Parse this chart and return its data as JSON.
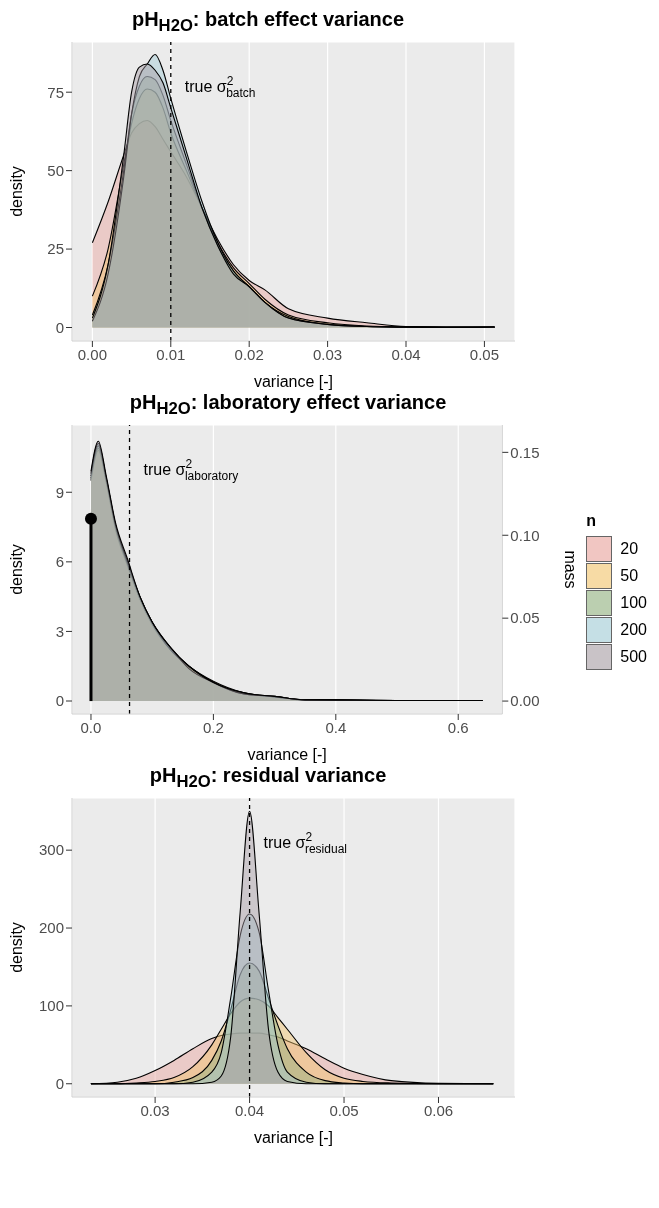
{
  "chart_data": [
    {
      "type": "area",
      "title": "pH$_{H2O}$: batch effect variance",
      "xlabel": "variance [-]",
      "ylabel": "density",
      "legend": false,
      "grid": true,
      "x": [
        0,
        0.002,
        0.004,
        0.005,
        0.006,
        0.007,
        0.008,
        0.009,
        0.01,
        0.012,
        0.014,
        0.016,
        0.018,
        0.02,
        0.022,
        0.025,
        0.03,
        0.035,
        0.04,
        0.045,
        0.0513
      ],
      "xlim": [
        -0.0026,
        0.0539
      ],
      "xticks": [
        {
          "value": 0,
          "label": "0.00"
        },
        0.01,
        0.02,
        0.03,
        0.04,
        0.05
      ],
      "ylim": [
        -4.3,
        91
      ],
      "yticks": [
        0,
        25,
        50,
        75
      ],
      "ref_lines": [
        {
          "axis": "x",
          "value": 0.01,
          "label": "true σ$^{2}$$_{batch}$",
          "line_style": "dashed",
          "color": "#000000"
        }
      ],
      "series": [
        {
          "color": "#e8a19b",
          "values": [
            27,
            40,
            55,
            62,
            65,
            66,
            64,
            60,
            56,
            48,
            38,
            28,
            20,
            15,
            12,
            6,
            3,
            1.5,
            0.3,
            0.2,
            0.2
          ]
        },
        {
          "color": "#f3c46b",
          "values": [
            10,
            25,
            52,
            65,
            73,
            76,
            75,
            70,
            62,
            50,
            38,
            27,
            19,
            14,
            9,
            4,
            1.5,
            0.5,
            0.2,
            0.1,
            0.1
          ]
        },
        {
          "color": "#8fb07d",
          "values": [
            4,
            20,
            50,
            68,
            77,
            80,
            79,
            74,
            66,
            52,
            38,
            26,
            18,
            13,
            8,
            3.5,
            1,
            0.3,
            0.1,
            0.1,
            0.1
          ]
        },
        {
          "color": "#9fcad4",
          "values": [
            2,
            17,
            48,
            68,
            80,
            84,
            87,
            82,
            73,
            56,
            40,
            27,
            18,
            13,
            8,
            3,
            1,
            0.3,
            0.1,
            0,
            0
          ]
        },
        {
          "color": "#a69ca3",
          "values": [
            3,
            20,
            55,
            75,
            83,
            84,
            82,
            78,
            70,
            54,
            38,
            26,
            17,
            13,
            8,
            3,
            1,
            0.3,
            0.1,
            0,
            0.2
          ]
        }
      ]
    },
    {
      "type": "area",
      "title": "pH$_{H2O}$: laboratory effect variance",
      "xlabel": "variance [-]",
      "ylabel": "density",
      "y2label": "mass",
      "legend": "right",
      "legend_title": "n",
      "grid": true,
      "x": [
        0,
        0.012,
        0.025,
        0.04,
        0.06,
        0.08,
        0.1,
        0.13,
        0.16,
        0.2,
        0.25,
        0.3,
        0.35,
        0.4,
        0.5,
        0.64
      ],
      "xlim": [
        -0.031,
        0.672
      ],
      "xticks": [
        {
          "value": 0,
          "label": "0.0"
        },
        0.2,
        0.4,
        0.6
      ],
      "ylim": [
        -0.56,
        11.9
      ],
      "yticks": [
        0,
        3,
        6,
        9
      ],
      "y2lim": [
        -0.0078,
        0.1665
      ],
      "y2ticks": [
        {
          "value": 0,
          "label": "0.00"
        },
        0.05,
        {
          "value": 0.1,
          "label": "0.10"
        },
        0.15
      ],
      "ref_lines": [
        {
          "axis": "x",
          "value": 0.063,
          "label": "true σ$^{2}$$_{laboratory}$",
          "line_style": "dashed",
          "color": "#000000"
        }
      ],
      "series": [
        {
          "name": "20",
          "color": "#e8a19b",
          "values": [
            9.5,
            10.8,
            9.4,
            7.4,
            5.8,
            4.4,
            3.4,
            2.3,
            1.5,
            0.8,
            0.35,
            0.2,
            0.05,
            0.05,
            0.02,
            0.02
          ]
        },
        {
          "name": "50",
          "color": "#f3c46b",
          "values": [
            9.6,
            10.9,
            9.5,
            7.5,
            5.9,
            4.4,
            3.3,
            2.2,
            1.5,
            0.85,
            0.35,
            0.18,
            0.05,
            0.04,
            0.02,
            0.02
          ]
        },
        {
          "name": "100",
          "color": "#8fb07d",
          "values": [
            9.7,
            11,
            9.6,
            7.6,
            5.9,
            4.5,
            3.4,
            2.2,
            1.5,
            0.8,
            0.3,
            0.18,
            0.04,
            0.04,
            0.02,
            0.02
          ]
        },
        {
          "name": "200",
          "color": "#9fcad4",
          "values": [
            9.8,
            11.1,
            9.6,
            7.6,
            6,
            4.5,
            3.4,
            2.3,
            1.4,
            0.8,
            0.3,
            0.2,
            0.04,
            0.04,
            0.02,
            0.02
          ]
        },
        {
          "name": "500",
          "color": "#a69ca3",
          "values": [
            9.9,
            11.2,
            9.7,
            7.7,
            6.1,
            4.5,
            3.4,
            2.3,
            1.5,
            0.8,
            0.35,
            0.2,
            0.05,
            0.04,
            0.02,
            0.02
          ]
        },
        {
          "type": "lollipop",
          "axis": "y2",
          "x": [
            0
          ],
          "values": [
            0.11
          ],
          "color": "#000000"
        }
      ]
    },
    {
      "type": "area",
      "title": "pH$_{H2O}$: residual variance",
      "xlabel": "variance [-]",
      "ylabel": "density",
      "legend": false,
      "grid": true,
      "x": [
        0.0232,
        0.026,
        0.028,
        0.03,
        0.032,
        0.034,
        0.036,
        0.037,
        0.038,
        0.039,
        0.04,
        0.041,
        0.042,
        0.043,
        0.044,
        0.046,
        0.048,
        0.05,
        0.052,
        0.055,
        0.06,
        0.0658
      ],
      "xlim": [
        0.0212,
        0.0681
      ],
      "xticks": [
        0.03,
        0.04,
        0.05,
        0.06
      ],
      "ylim": [
        -17,
        367
      ],
      "yticks": [
        0,
        100,
        200,
        300
      ],
      "ref_lines": [
        {
          "axis": "x",
          "value": 0.04,
          "label": "true σ$^{2}$$_{residual}$",
          "line_style": "dashed",
          "color": "#000000"
        }
      ],
      "series": [
        {
          "color": "#e8a19b",
          "values": [
            0,
            2,
            7,
            17,
            30,
            45,
            58,
            62,
            64,
            65,
            65,
            65,
            63,
            60,
            55,
            45,
            32,
            20,
            12,
            4,
            0.5,
            0
          ]
        },
        {
          "color": "#f3c46b",
          "values": [
            0,
            0,
            1,
            3,
            8,
            22,
            50,
            70,
            90,
            105,
            110,
            108,
            100,
            85,
            70,
            40,
            18,
            7,
            3,
            1,
            0,
            0
          ]
        },
        {
          "color": "#8fb07d",
          "values": [
            0,
            0,
            0,
            0,
            2,
            8,
            30,
            55,
            95,
            140,
            155,
            145,
            110,
            75,
            45,
            15,
            4,
            1,
            0,
            0,
            0,
            0
          ]
        },
        {
          "color": "#9fcad4",
          "values": [
            0,
            0,
            0,
            0,
            0,
            2,
            15,
            40,
            110,
            190,
            218,
            195,
            120,
            50,
            15,
            2,
            0,
            0,
            0,
            0,
            0,
            0
          ]
        },
        {
          "color": "#a69ca3",
          "values": [
            0,
            0,
            0,
            0,
            0,
            0,
            2,
            10,
            60,
            220,
            350,
            220,
            70,
            15,
            3,
            0,
            0,
            0,
            0,
            0,
            0,
            0
          ]
        }
      ]
    }
  ]
}
